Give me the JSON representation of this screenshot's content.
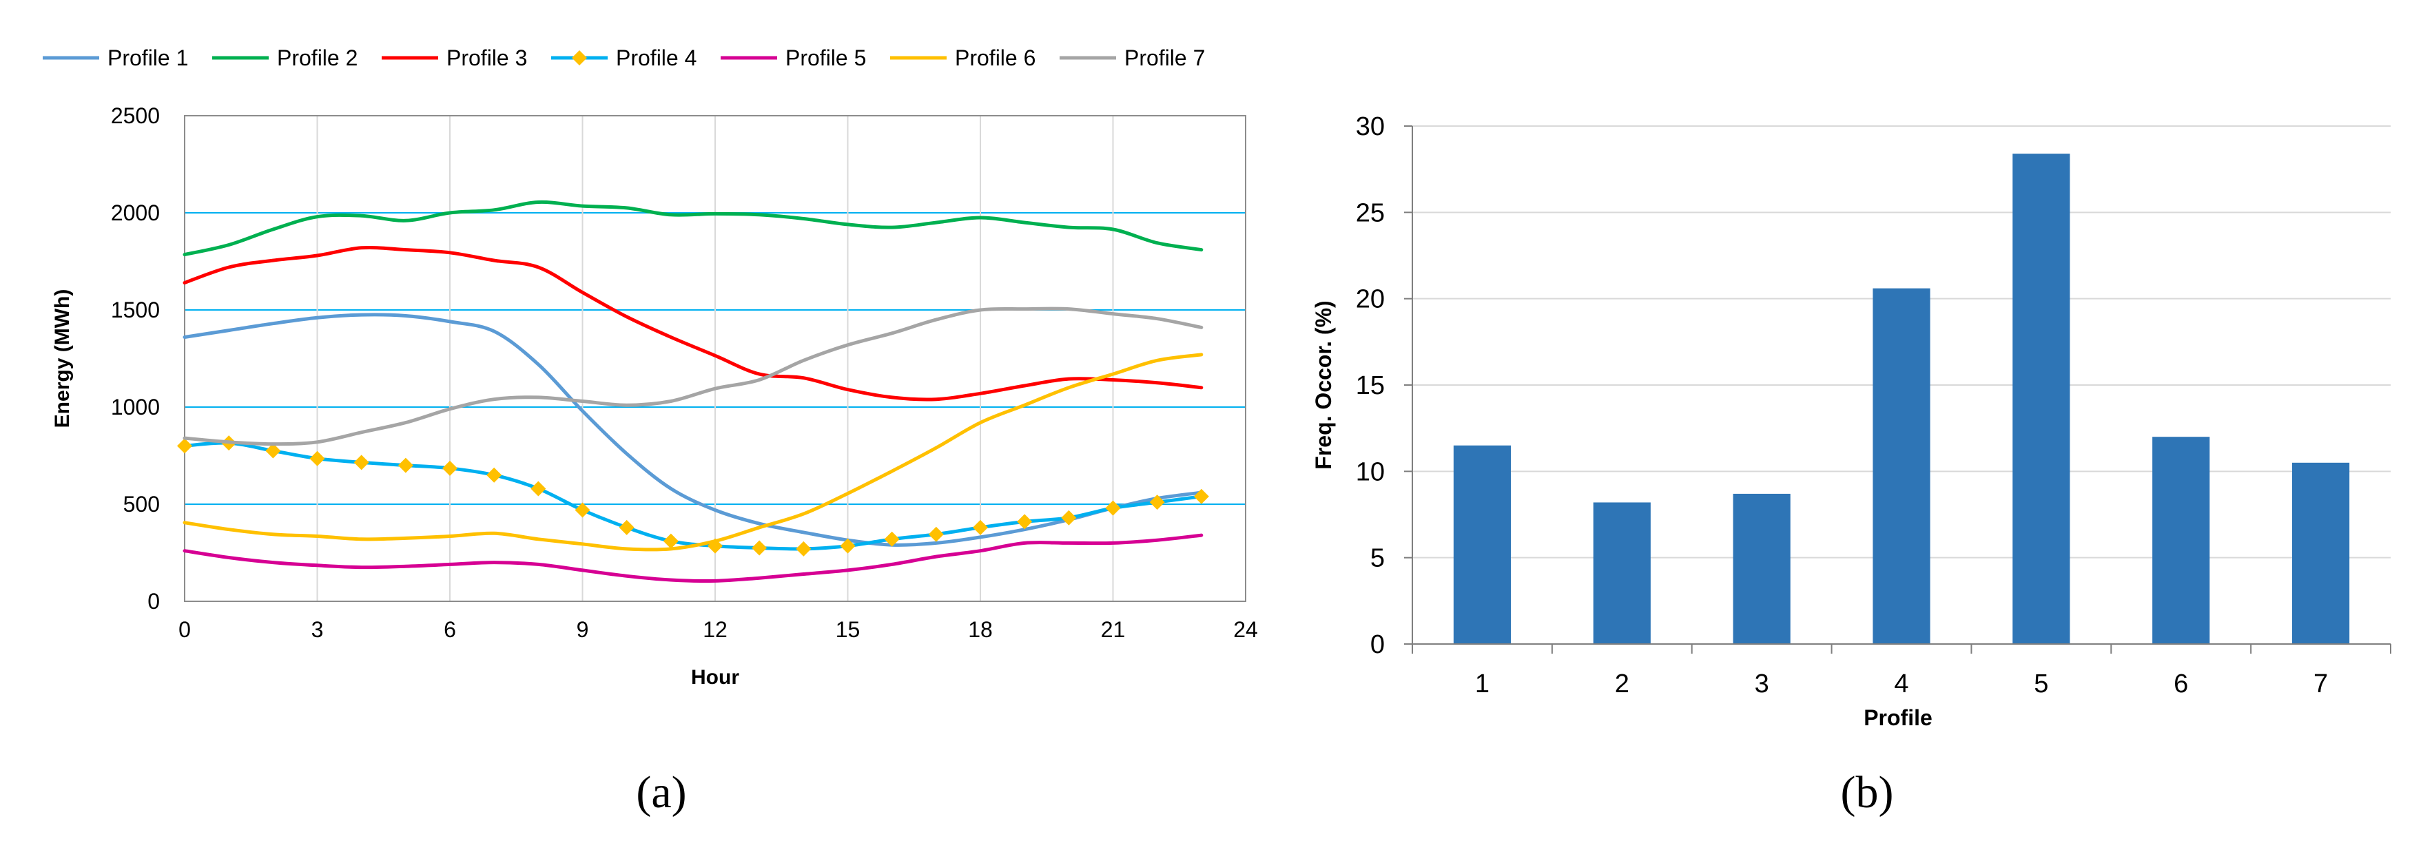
{
  "chart_data": [
    {
      "type": "line",
      "panel_label": "(a)",
      "title": "",
      "xlabel": "Hour",
      "ylabel": "Energy (MWh)",
      "xlim": [
        0,
        24
      ],
      "ylim": [
        0,
        2500
      ],
      "xticks": [
        0,
        3,
        6,
        9,
        12,
        15,
        18,
        21,
        24
      ],
      "yticks": [
        0,
        500,
        1000,
        1500,
        2000,
        2500
      ],
      "grid": "both",
      "legend_position": "top",
      "x": [
        0,
        1,
        2,
        3,
        4,
        5,
        6,
        7,
        8,
        9,
        10,
        11,
        12,
        13,
        14,
        15,
        16,
        17,
        18,
        19,
        20,
        21,
        22,
        23
      ],
      "series": [
        {
          "name": "Profile 1",
          "color": "#5b9bd5",
          "marker": "none",
          "values": [
            1360,
            1395,
            1430,
            1460,
            1475,
            1470,
            1440,
            1390,
            1220,
            980,
            760,
            580,
            470,
            400,
            355,
            315,
            290,
            300,
            330,
            370,
            420,
            480,
            530,
            560
          ]
        },
        {
          "name": "Profile 2",
          "color": "#00b050",
          "marker": "none",
          "values": [
            1785,
            1835,
            1915,
            1980,
            1985,
            1960,
            2000,
            2015,
            2055,
            2035,
            2025,
            1990,
            1995,
            1990,
            1970,
            1940,
            1925,
            1950,
            1975,
            1950,
            1925,
            1915,
            1845,
            1810
          ]
        },
        {
          "name": "Profile 3",
          "color": "#ff0000",
          "marker": "none",
          "values": [
            1640,
            1720,
            1755,
            1780,
            1820,
            1810,
            1795,
            1755,
            1720,
            1590,
            1465,
            1360,
            1265,
            1170,
            1150,
            1090,
            1050,
            1040,
            1070,
            1110,
            1145,
            1140,
            1125,
            1100
          ]
        },
        {
          "name": "Profile 4",
          "color": "#00b0f0",
          "marker": "diamond",
          "marker_color": "#ffc000",
          "values": [
            800,
            815,
            775,
            735,
            715,
            700,
            685,
            650,
            580,
            470,
            380,
            310,
            285,
            275,
            270,
            285,
            320,
            345,
            380,
            410,
            430,
            480,
            510,
            540
          ]
        },
        {
          "name": "Profile 5",
          "color": "#d60093",
          "marker": "none",
          "values": [
            260,
            225,
            200,
            185,
            175,
            180,
            190,
            200,
            190,
            160,
            130,
            110,
            105,
            120,
            140,
            160,
            190,
            230,
            260,
            300,
            300,
            300,
            315,
            340
          ]
        },
        {
          "name": "Profile 6",
          "color": "#ffc000",
          "marker": "none",
          "values": [
            405,
            370,
            345,
            335,
            320,
            325,
            335,
            350,
            320,
            295,
            270,
            270,
            310,
            380,
            450,
            555,
            670,
            790,
            920,
            1010,
            1100,
            1170,
            1240,
            1270
          ]
        },
        {
          "name": "Profile 7",
          "color": "#a5a5a5",
          "marker": "none",
          "values": [
            840,
            820,
            810,
            820,
            870,
            920,
            990,
            1040,
            1050,
            1030,
            1010,
            1030,
            1095,
            1140,
            1240,
            1320,
            1380,
            1450,
            1500,
            1505,
            1505,
            1480,
            1455,
            1410
          ]
        }
      ]
    },
    {
      "type": "bar",
      "panel_label": "(b)",
      "title": "",
      "xlabel": "Profile",
      "ylabel": "Freq. Occor. (%)",
      "ylim": [
        0,
        30
      ],
      "yticks": [
        0,
        5,
        10,
        15,
        20,
        25,
        30
      ],
      "grid": "horizontal",
      "color": "#2e75b6",
      "categories": [
        "1",
        "2",
        "3",
        "4",
        "5",
        "6",
        "7"
      ],
      "values": [
        11.5,
        8.2,
        8.7,
        20.6,
        28.4,
        12.0,
        10.5
      ]
    }
  ]
}
